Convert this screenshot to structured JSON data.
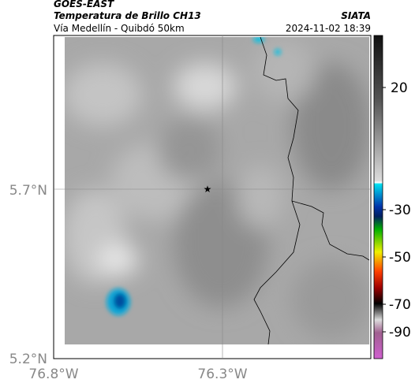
{
  "header": {
    "source": "GOES-EAST",
    "title": "Temperatura de Brillo CH13",
    "org": "SIATA",
    "route": "Vía Medellín - Quibdó 50km",
    "datetime": "2024-11-02 18:39"
  },
  "map": {
    "lat_labels": [
      "5.7°N",
      "5.2°N"
    ],
    "lon_labels": [
      "76.8°W",
      "76.3°W"
    ]
  },
  "colorbar": {
    "ticks": [
      "20",
      "-30",
      "-50",
      "-70",
      "-90"
    ]
  }
}
